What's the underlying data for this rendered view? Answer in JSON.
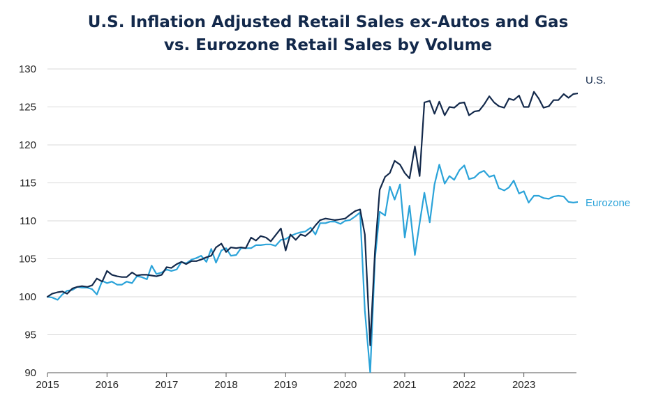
{
  "chart_data": {
    "type": "line",
    "title": "U.S. Inflation Adjusted Retail Sales ex-Autos and Gas",
    "title_line2": "vs. Eurozone Retail Sales by Volume",
    "xlabel": "",
    "ylabel": "",
    "xlim": [
      2015,
      2023.83
    ],
    "ylim": [
      90,
      130
    ],
    "x_ticks": [
      "2015",
      "2016",
      "2017",
      "2018",
      "2019",
      "2020",
      "2021",
      "2022",
      "2023"
    ],
    "y_ticks": [
      "90",
      "95",
      "100",
      "105",
      "110",
      "115",
      "120",
      "125",
      "130"
    ],
    "grid": "horizontal",
    "legend": "inline labels at right end of lines",
    "series": [
      {
        "name": "U.S.",
        "color": "#13294b",
        "values": [
          [
            2015.0,
            100.0
          ],
          [
            2015.08,
            100.4
          ],
          [
            2015.17,
            100.6
          ],
          [
            2015.25,
            100.7
          ],
          [
            2015.33,
            100.4
          ],
          [
            2015.42,
            101.1
          ],
          [
            2015.5,
            101.3
          ],
          [
            2015.58,
            101.4
          ],
          [
            2015.67,
            101.3
          ],
          [
            2015.75,
            101.5
          ],
          [
            2015.83,
            102.4
          ],
          [
            2015.92,
            102.0
          ],
          [
            2016.0,
            103.4
          ],
          [
            2016.08,
            102.9
          ],
          [
            2016.17,
            102.7
          ],
          [
            2016.25,
            102.6
          ],
          [
            2016.33,
            102.6
          ],
          [
            2016.42,
            103.2
          ],
          [
            2016.5,
            102.8
          ],
          [
            2016.58,
            102.9
          ],
          [
            2016.67,
            102.9
          ],
          [
            2016.75,
            102.8
          ],
          [
            2016.83,
            102.7
          ],
          [
            2016.92,
            102.9
          ],
          [
            2017.0,
            103.9
          ],
          [
            2017.08,
            103.8
          ],
          [
            2017.17,
            104.3
          ],
          [
            2017.25,
            104.6
          ],
          [
            2017.33,
            104.3
          ],
          [
            2017.42,
            104.7
          ],
          [
            2017.5,
            104.7
          ],
          [
            2017.58,
            104.9
          ],
          [
            2017.67,
            105.2
          ],
          [
            2017.75,
            105.4
          ],
          [
            2017.83,
            106.5
          ],
          [
            2017.92,
            107.0
          ],
          [
            2018.0,
            105.9
          ],
          [
            2018.08,
            106.5
          ],
          [
            2018.17,
            106.4
          ],
          [
            2018.25,
            106.5
          ],
          [
            2018.33,
            106.4
          ],
          [
            2018.42,
            107.8
          ],
          [
            2018.5,
            107.4
          ],
          [
            2018.58,
            108.0
          ],
          [
            2018.67,
            107.8
          ],
          [
            2018.75,
            107.3
          ],
          [
            2018.83,
            108.1
          ],
          [
            2018.92,
            109.0
          ],
          [
            2019.0,
            106.1
          ],
          [
            2019.08,
            108.2
          ],
          [
            2019.17,
            107.5
          ],
          [
            2019.25,
            108.2
          ],
          [
            2019.33,
            108.0
          ],
          [
            2019.42,
            108.6
          ],
          [
            2019.5,
            109.4
          ],
          [
            2019.58,
            110.1
          ],
          [
            2019.67,
            110.3
          ],
          [
            2019.75,
            110.2
          ],
          [
            2019.83,
            110.1
          ],
          [
            2019.92,
            110.2
          ],
          [
            2020.0,
            110.3
          ],
          [
            2020.08,
            110.8
          ],
          [
            2020.17,
            111.3
          ],
          [
            2020.25,
            111.5
          ],
          [
            2020.33,
            108.2
          ],
          [
            2020.42,
            93.6
          ],
          [
            2020.5,
            106.0
          ],
          [
            2020.58,
            114.1
          ],
          [
            2020.67,
            115.8
          ],
          [
            2020.75,
            116.3
          ],
          [
            2020.83,
            117.9
          ],
          [
            2020.92,
            117.4
          ],
          [
            2021.0,
            116.3
          ],
          [
            2021.08,
            115.6
          ],
          [
            2021.17,
            119.8
          ],
          [
            2021.25,
            115.9
          ],
          [
            2021.33,
            125.6
          ],
          [
            2021.42,
            125.8
          ],
          [
            2021.5,
            124.1
          ],
          [
            2021.58,
            125.7
          ],
          [
            2021.67,
            123.9
          ],
          [
            2021.75,
            125.0
          ],
          [
            2021.83,
            124.9
          ],
          [
            2021.92,
            125.5
          ],
          [
            2022.0,
            125.6
          ],
          [
            2022.08,
            123.9
          ],
          [
            2022.17,
            124.4
          ],
          [
            2022.25,
            124.5
          ],
          [
            2022.33,
            125.3
          ],
          [
            2022.42,
            126.4
          ],
          [
            2022.5,
            125.6
          ],
          [
            2022.58,
            125.1
          ],
          [
            2022.67,
            124.9
          ],
          [
            2022.75,
            126.1
          ],
          [
            2022.83,
            125.9
          ],
          [
            2022.92,
            126.5
          ],
          [
            2023.0,
            125.0
          ],
          [
            2023.08,
            125.0
          ],
          [
            2023.17,
            127.0
          ],
          [
            2023.25,
            126.1
          ],
          [
            2023.33,
            124.9
          ],
          [
            2023.42,
            125.1
          ],
          [
            2023.5,
            125.9
          ],
          [
            2023.58,
            125.9
          ],
          [
            2023.67,
            126.7
          ],
          [
            2023.75,
            126.2
          ],
          [
            2023.83,
            126.7
          ],
          [
            2023.92,
            126.8
          ],
          [
            2024.0,
            126.8
          ]
        ]
      },
      {
        "name": "Eurozone",
        "color": "#2ba3d9",
        "values": [
          [
            2015.0,
            100.0
          ],
          [
            2015.08,
            99.9
          ],
          [
            2015.17,
            99.6
          ],
          [
            2015.25,
            100.3
          ],
          [
            2015.33,
            100.8
          ],
          [
            2015.42,
            100.9
          ],
          [
            2015.5,
            101.3
          ],
          [
            2015.58,
            101.2
          ],
          [
            2015.67,
            101.2
          ],
          [
            2015.75,
            101.0
          ],
          [
            2015.83,
            100.3
          ],
          [
            2015.92,
            102.1
          ],
          [
            2016.0,
            101.8
          ],
          [
            2016.08,
            102.0
          ],
          [
            2016.17,
            101.6
          ],
          [
            2016.25,
            101.6
          ],
          [
            2016.33,
            102.0
          ],
          [
            2016.42,
            101.8
          ],
          [
            2016.5,
            102.7
          ],
          [
            2016.58,
            102.6
          ],
          [
            2016.67,
            102.3
          ],
          [
            2016.75,
            104.1
          ],
          [
            2016.83,
            103.0
          ],
          [
            2016.92,
            103.2
          ],
          [
            2017.0,
            103.6
          ],
          [
            2017.08,
            103.4
          ],
          [
            2017.17,
            103.6
          ],
          [
            2017.25,
            104.6
          ],
          [
            2017.33,
            104.4
          ],
          [
            2017.42,
            104.9
          ],
          [
            2017.5,
            105.1
          ],
          [
            2017.58,
            105.4
          ],
          [
            2017.67,
            104.6
          ],
          [
            2017.75,
            106.3
          ],
          [
            2017.83,
            104.5
          ],
          [
            2017.92,
            106.1
          ],
          [
            2018.0,
            106.4
          ],
          [
            2018.08,
            105.4
          ],
          [
            2018.17,
            105.5
          ],
          [
            2018.25,
            106.4
          ],
          [
            2018.33,
            106.4
          ],
          [
            2018.42,
            106.4
          ],
          [
            2018.5,
            106.8
          ],
          [
            2018.58,
            106.8
          ],
          [
            2018.67,
            106.9
          ],
          [
            2018.75,
            106.9
          ],
          [
            2018.83,
            106.7
          ],
          [
            2018.92,
            107.5
          ],
          [
            2019.0,
            107.6
          ],
          [
            2019.08,
            108.0
          ],
          [
            2019.17,
            108.3
          ],
          [
            2019.25,
            108.5
          ],
          [
            2019.33,
            108.6
          ],
          [
            2019.42,
            109.1
          ],
          [
            2019.5,
            108.2
          ],
          [
            2019.58,
            109.7
          ],
          [
            2019.67,
            109.7
          ],
          [
            2019.75,
            109.9
          ],
          [
            2019.83,
            109.9
          ],
          [
            2019.92,
            109.6
          ],
          [
            2020.0,
            110.0
          ],
          [
            2020.08,
            110.1
          ],
          [
            2020.17,
            110.6
          ],
          [
            2020.25,
            111.1
          ],
          [
            2020.33,
            98.2
          ],
          [
            2020.42,
            90.0
          ],
          [
            2020.5,
            105.0
          ],
          [
            2020.58,
            111.2
          ],
          [
            2020.67,
            110.7
          ],
          [
            2020.75,
            114.5
          ],
          [
            2020.83,
            112.8
          ],
          [
            2020.92,
            114.8
          ],
          [
            2021.0,
            107.8
          ],
          [
            2021.08,
            112.0
          ],
          [
            2021.17,
            105.5
          ],
          [
            2021.25,
            109.7
          ],
          [
            2021.33,
            113.7
          ],
          [
            2021.42,
            109.8
          ],
          [
            2021.5,
            114.8
          ],
          [
            2021.58,
            117.4
          ],
          [
            2021.67,
            114.9
          ],
          [
            2021.75,
            115.9
          ],
          [
            2021.83,
            115.4
          ],
          [
            2021.92,
            116.7
          ],
          [
            2022.0,
            117.3
          ],
          [
            2022.08,
            115.5
          ],
          [
            2022.17,
            115.7
          ],
          [
            2022.25,
            116.3
          ],
          [
            2022.33,
            116.6
          ],
          [
            2022.42,
            115.8
          ],
          [
            2022.5,
            116.0
          ],
          [
            2022.58,
            114.3
          ],
          [
            2022.67,
            114.0
          ],
          [
            2022.75,
            114.4
          ],
          [
            2022.83,
            115.3
          ],
          [
            2022.92,
            113.6
          ],
          [
            2023.0,
            113.9
          ],
          [
            2023.08,
            112.4
          ],
          [
            2023.17,
            113.3
          ],
          [
            2023.25,
            113.3
          ],
          [
            2023.33,
            113.0
          ],
          [
            2023.42,
            112.9
          ],
          [
            2023.5,
            113.2
          ],
          [
            2023.58,
            113.3
          ],
          [
            2023.67,
            113.2
          ],
          [
            2023.75,
            112.5
          ],
          [
            2023.83,
            112.4
          ],
          [
            2023.92,
            112.5
          ]
        ]
      }
    ]
  }
}
